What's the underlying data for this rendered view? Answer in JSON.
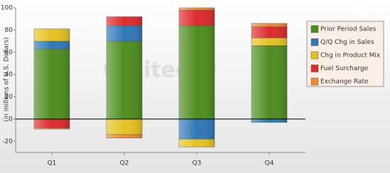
{
  "chart_data": {
    "type": "stacked_bar",
    "y_label": "(in millions of U.S. Dollars)",
    "watermark": "wikitechy",
    "categories": [
      "Q1",
      "Q2",
      "Q3",
      "Q4"
    ],
    "series": [
      {
        "name": "Prior Period Sales",
        "color": "#4e8d1f",
        "values": [
          63,
          70,
          84,
          66
        ]
      },
      {
        "name": "Q/Q Chg in Sales",
        "color": "#2f78b8",
        "values": [
          7,
          14,
          -18,
          -3
        ]
      },
      {
        "name": "Chg in Product Mix",
        "color": "#e6c21f",
        "values": [
          11,
          -14,
          -7,
          7
        ]
      },
      {
        "name": "Fuel Surcharge",
        "color": "#dd2a2c",
        "values": [
          -8,
          8,
          14,
          10
        ]
      },
      {
        "name": "Exchange Rate",
        "color": "#f28a2e",
        "values": [
          -1,
          -3,
          2,
          3
        ]
      }
    ],
    "ylim": [
      -30,
      100
    ],
    "yticks": [
      -20,
      0,
      20,
      40,
      60,
      80,
      100
    ],
    "legend": "right"
  }
}
